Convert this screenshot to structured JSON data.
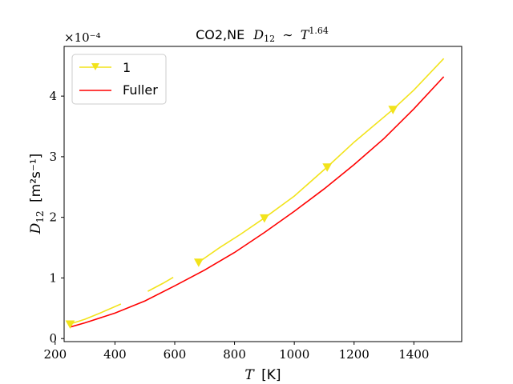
{
  "chart_data": {
    "type": "line",
    "title_prefix": "CO2,NE",
    "title_math": "D",
    "title_math_sub": "12",
    "title_sim": "∼",
    "title_T": "T",
    "title_exp": "1.64",
    "xlabel_T": "T",
    "xlabel_unit": "[K]",
    "ylabel_D": "D",
    "ylabel_sub": "12",
    "ylabel_unit": "[m²s⁻¹]",
    "offset_text": "×10⁻⁴",
    "xlim": [
      230,
      1560
    ],
    "ylim": [
      -0.05,
      4.82
    ],
    "xticks": [
      200,
      400,
      600,
      800,
      1000,
      1200,
      1400
    ],
    "yticks": [
      0,
      1,
      2,
      3,
      4
    ],
    "legend_position": "upper left",
    "colors": {
      "series1": "#f2e31b",
      "fuller": "#ff0000"
    },
    "series": [
      {
        "name": "1",
        "color": "#f2e31b",
        "marker": "triangle-down",
        "segments": [
          [
            [
              250,
              0.24
            ],
            [
              300,
              0.32
            ],
            [
              350,
              0.42
            ],
            [
              420,
              0.57
            ]
          ],
          [
            [
              510,
              0.78
            ],
            [
              560,
              0.91
            ],
            [
              595,
              1.01
            ]
          ],
          [
            [
              680,
              1.26
            ],
            [
              750,
              1.5
            ],
            [
              820,
              1.72
            ],
            [
              900,
              1.99
            ],
            [
              1000,
              2.35
            ],
            [
              1110,
              2.83
            ],
            [
              1200,
              3.24
            ],
            [
              1330,
              3.78
            ],
            [
              1400,
              4.1
            ],
            [
              1500,
              4.62
            ]
          ]
        ],
        "markers_x": [
          250,
          680,
          900,
          1110,
          1330
        ],
        "markers_y": [
          0.24,
          1.26,
          1.99,
          2.83,
          3.78
        ]
      },
      {
        "name": "Fuller",
        "color": "#ff0000",
        "x": [
          250,
          300,
          400,
          500,
          600,
          700,
          800,
          900,
          1000,
          1100,
          1200,
          1300,
          1400,
          1500
        ],
        "values": [
          0.19,
          0.26,
          0.42,
          0.62,
          0.87,
          1.13,
          1.42,
          1.75,
          2.1,
          2.47,
          2.87,
          3.3,
          3.79,
          4.32
        ]
      }
    ]
  }
}
